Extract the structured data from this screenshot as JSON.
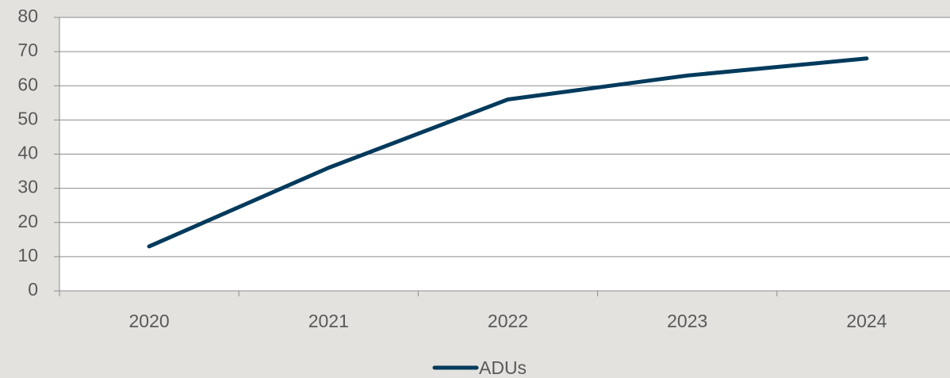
{
  "chart_data": {
    "type": "line",
    "categories": [
      "2020",
      "2021",
      "2022",
      "2023",
      "2024"
    ],
    "series": [
      {
        "name": "ADUs",
        "color": "#003a5c",
        "values": [
          13,
          36,
          56,
          63,
          68
        ]
      }
    ],
    "ylim": [
      0,
      80
    ],
    "yticks": [
      0,
      10,
      20,
      30,
      40,
      50,
      60,
      70,
      80
    ],
    "grid": true,
    "legend": "bottom"
  }
}
